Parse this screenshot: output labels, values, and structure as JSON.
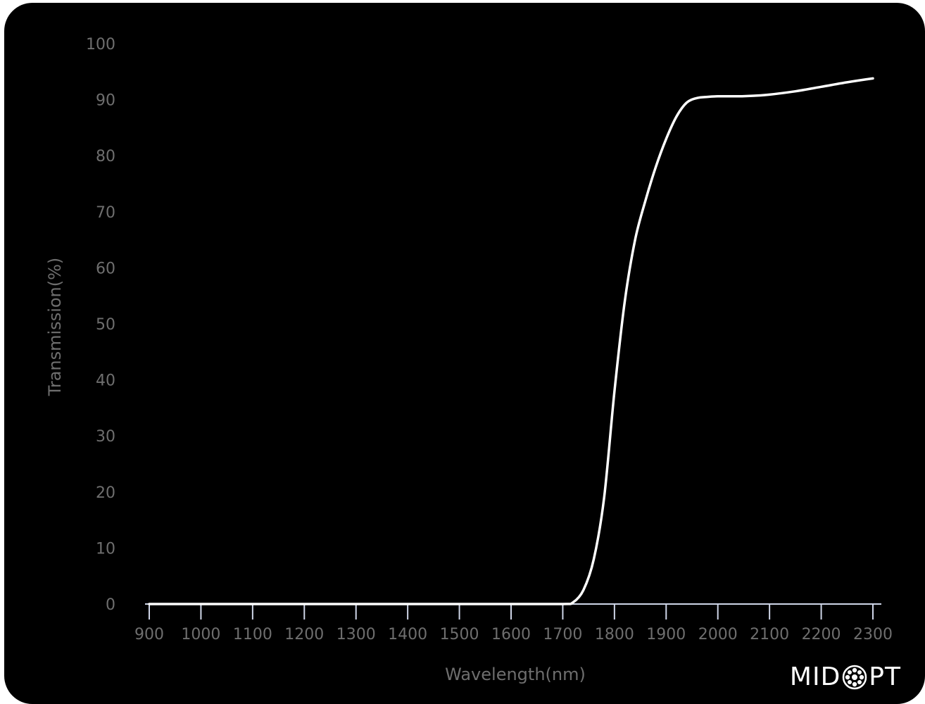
{
  "chart_data": {
    "type": "line",
    "xlabel": "Wavelength(nm)",
    "ylabel": "Transmission(%)",
    "xlim": [
      900,
      2300
    ],
    "ylim": [
      0,
      100
    ],
    "x_ticks": [
      "900",
      "1000",
      "1100",
      "1200",
      "1300",
      "1400",
      "1500",
      "1600",
      "1700",
      "1800",
      "1900",
      "2000",
      "2100",
      "2200",
      "2300"
    ],
    "y_ticks": [
      "0",
      "10",
      "20",
      "30",
      "40",
      "50",
      "60",
      "70",
      "80",
      "90",
      "100"
    ],
    "grid": false,
    "series": [
      {
        "color": "#ffffff",
        "x": [
          900,
          1000,
          1100,
          1200,
          1300,
          1400,
          1500,
          1600,
          1700,
          1720,
          1740,
          1760,
          1780,
          1800,
          1820,
          1840,
          1860,
          1880,
          1900,
          1920,
          1940,
          1960,
          1980,
          2000,
          2040,
          2070,
          2100,
          2150,
          2200,
          2250,
          2300
        ],
        "y": [
          0,
          0,
          0,
          0,
          0,
          0,
          0,
          0,
          0,
          0.3,
          2.5,
          8,
          19,
          38,
          54,
          65,
          72,
          78,
          83,
          87,
          89.5,
          90.3,
          90.5,
          90.6,
          90.6,
          90.7,
          90.9,
          91.5,
          92.3,
          93.1,
          93.8
        ]
      }
    ]
  },
  "brand": {
    "left": "MID",
    "right": "PT"
  }
}
